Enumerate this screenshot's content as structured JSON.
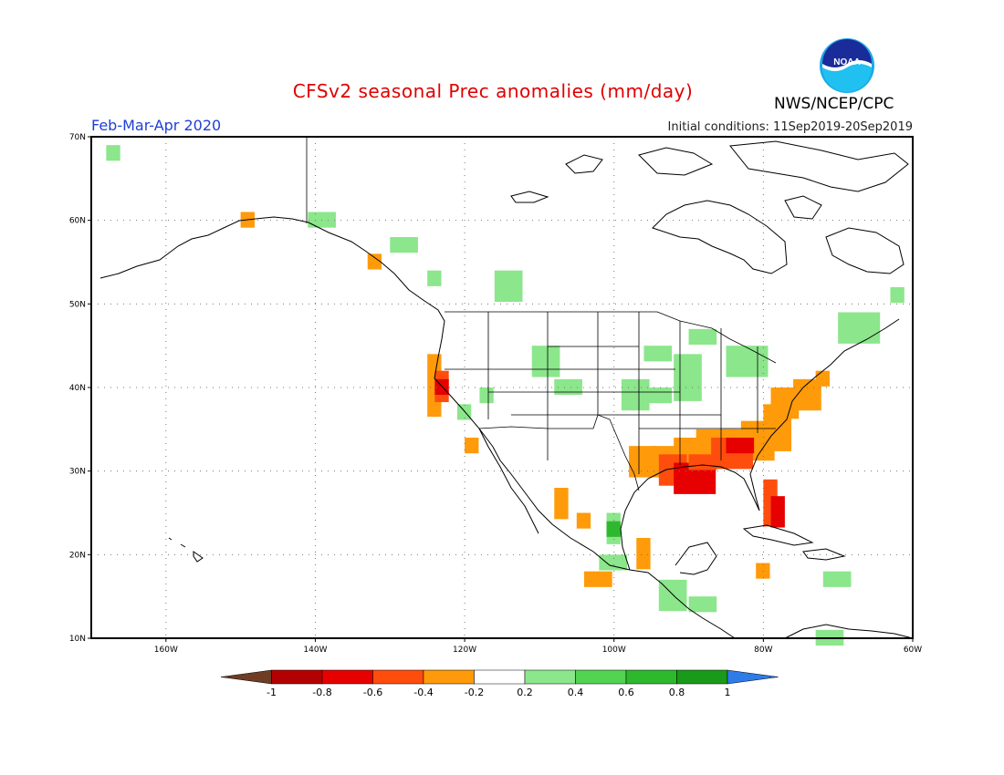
{
  "title": "CFSv2 seasonal Prec anomalies (mm/day)",
  "period": "Feb-Mar-Apr 2020",
  "initial_conditions": "Initial conditions: 11Sep2019-20Sep2019",
  "agency": "NWS/NCEP/CPC",
  "logo_text": "NOAA",
  "lat_labels": [
    "70N",
    "60N",
    "50N",
    "40N",
    "30N",
    "20N",
    "10N"
  ],
  "lon_labels": [
    "160W",
    "140W",
    "120W",
    "100W",
    "80W",
    "60W"
  ],
  "colorbar": {
    "ticks": [
      "-1",
      "-0.8",
      "-0.6",
      "-0.4",
      "-0.2",
      "0.2",
      "0.4",
      "0.6",
      "0.8",
      "1"
    ],
    "colors": [
      "#6e3d24",
      "#b30000",
      "#e60000",
      "#ff4d0d",
      "#ff9a0a",
      "#ffffff",
      "#8ce68c",
      "#52d452",
      "#2db82d",
      "#1a9a1a",
      "#2f7be8"
    ]
  },
  "colors": {
    "coast": "#000000",
    "grid": "#777777"
  }
}
